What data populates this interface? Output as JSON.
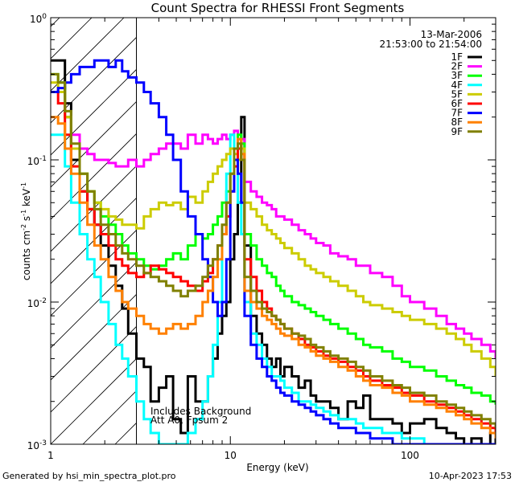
{
  "chart_data": {
    "type": "line",
    "title": "Count Spectra for RHESSI Front Segments",
    "xlabel": "Energy (keV)",
    "ylabel_parts": {
      "a": "counts cm",
      "a_sup": "-2",
      "b": " s",
      "b_sup": "-1",
      "c": " keV",
      "c_sup": "-1"
    },
    "x_scale": "log",
    "y_scale": "log",
    "xlim": [
      1,
      300
    ],
    "ylim": [
      0.001,
      1
    ],
    "x_ticks": [
      {
        "value": 1,
        "label": "1"
      },
      {
        "value": 10,
        "label": "10"
      },
      {
        "value": 100,
        "label": "100"
      }
    ],
    "y_ticks": [
      {
        "value": 1,
        "base": "10",
        "exp": "0"
      },
      {
        "value": 0.1,
        "base": "10",
        "exp": "-1"
      },
      {
        "value": 0.01,
        "base": "10",
        "exp": "-2"
      },
      {
        "value": 0.001,
        "base": "10",
        "exp": "-3"
      }
    ],
    "date": "13-Mar-2006",
    "time_range": "21:53:00 to 21:54:00",
    "annotations": [
      "Includes Background",
      "Att A0, Fpsum 2"
    ],
    "shaded_region_xmax": 3,
    "energy": [
      1.0,
      1.05,
      1.1,
      1.2,
      1.3,
      1.45,
      1.6,
      1.75,
      1.9,
      2.1,
      2.3,
      2.5,
      2.7,
      3.0,
      3.3,
      3.6,
      4.0,
      4.4,
      4.8,
      5.3,
      5.8,
      6.4,
      7.0,
      7.5,
      8.0,
      8.5,
      9.0,
      9.5,
      10.0,
      10.5,
      11.0,
      11.5,
      12.0,
      13,
      14,
      15,
      16,
      17,
      18,
      19,
      20,
      22,
      24,
      26,
      28,
      30,
      33,
      36,
      40,
      45,
      50,
      55,
      60,
      70,
      80,
      90,
      100,
      120,
      140,
      160,
      180,
      200,
      220,
      250,
      280,
      300
    ],
    "series": [
      {
        "name": "1F",
        "color": "#000000",
        "values": [
          0.5,
          0.5,
          0.5,
          0.25,
          0.1,
          0.06,
          0.045,
          0.035,
          0.025,
          0.018,
          0.013,
          0.009,
          0.006,
          0.004,
          0.0035,
          0.002,
          0.0025,
          0.003,
          0.0015,
          0.0012,
          0.003,
          0.002,
          0.002,
          0.003,
          0.004,
          0.006,
          0.008,
          0.01,
          0.02,
          0.03,
          0.05,
          0.2,
          0.025,
          0.008,
          0.006,
          0.005,
          0.004,
          0.0035,
          0.004,
          0.003,
          0.0035,
          0.003,
          0.0025,
          0.0028,
          0.0022,
          0.002,
          0.002,
          0.0018,
          0.0015,
          0.002,
          0.0018,
          0.0022,
          0.0015,
          0.0015,
          0.0014,
          0.0012,
          0.0014,
          0.0015,
          0.0013,
          0.0012,
          0.0011,
          0.001,
          0.0011,
          0.001,
          0.0012,
          0.001
        ]
      },
      {
        "name": "2F",
        "color": "#ff00ff",
        "values": [
          0.3,
          0.3,
          0.3,
          0.2,
          0.15,
          0.12,
          0.11,
          0.1,
          0.1,
          0.095,
          0.09,
          0.09,
          0.1,
          0.09,
          0.1,
          0.11,
          0.12,
          0.13,
          0.13,
          0.12,
          0.15,
          0.13,
          0.15,
          0.14,
          0.13,
          0.14,
          0.15,
          0.14,
          0.15,
          0.16,
          0.14,
          0.14,
          0.07,
          0.06,
          0.055,
          0.05,
          0.048,
          0.045,
          0.04,
          0.04,
          0.038,
          0.035,
          0.032,
          0.03,
          0.028,
          0.026,
          0.025,
          0.022,
          0.021,
          0.02,
          0.018,
          0.018,
          0.016,
          0.015,
          0.013,
          0.011,
          0.01,
          0.009,
          0.008,
          0.007,
          0.0065,
          0.006,
          0.0055,
          0.005,
          0.0045,
          0.004
        ]
      },
      {
        "name": "3F",
        "color": "#00ff00",
        "values": [
          0.4,
          0.4,
          0.35,
          0.2,
          0.12,
          0.08,
          0.06,
          0.05,
          0.04,
          0.035,
          0.03,
          0.025,
          0.022,
          0.02,
          0.018,
          0.017,
          0.018,
          0.02,
          0.022,
          0.02,
          0.025,
          0.03,
          0.028,
          0.03,
          0.035,
          0.04,
          0.05,
          0.06,
          0.08,
          0.12,
          0.15,
          0.13,
          0.03,
          0.025,
          0.02,
          0.018,
          0.016,
          0.015,
          0.013,
          0.012,
          0.011,
          0.01,
          0.0095,
          0.009,
          0.0085,
          0.008,
          0.0075,
          0.007,
          0.0065,
          0.006,
          0.0055,
          0.005,
          0.0048,
          0.0045,
          0.004,
          0.0038,
          0.0035,
          0.0033,
          0.003,
          0.0028,
          0.0026,
          0.0025,
          0.0023,
          0.0022,
          0.002,
          0.0019
        ]
      },
      {
        "name": "4F",
        "color": "#00ffff",
        "values": [
          0.15,
          0.15,
          0.15,
          0.09,
          0.05,
          0.03,
          0.02,
          0.015,
          0.01,
          0.007,
          0.005,
          0.004,
          0.003,
          0.002,
          0.0015,
          0.0012,
          0.001,
          0.001,
          0.001,
          0.001,
          0.0012,
          0.0015,
          0.002,
          0.003,
          0.005,
          0.01,
          0.03,
          0.08,
          0.15,
          0.12,
          0.05,
          0.03,
          0.01,
          0.006,
          0.005,
          0.004,
          0.0035,
          0.003,
          0.003,
          0.0028,
          0.0025,
          0.0023,
          0.002,
          0.002,
          0.0019,
          0.0018,
          0.0017,
          0.0016,
          0.0015,
          0.0015,
          0.0014,
          0.0013,
          0.0013,
          0.0012,
          0.0012,
          0.0011,
          0.0011,
          0.001,
          0.001,
          0.001,
          0.001,
          0.001,
          0.001,
          0.001,
          0.001,
          0.001
        ]
      },
      {
        "name": "5F",
        "color": "#cccc00",
        "values": [
          0.35,
          0.35,
          0.3,
          0.2,
          0.12,
          0.08,
          0.06,
          0.05,
          0.045,
          0.04,
          0.038,
          0.035,
          0.035,
          0.033,
          0.04,
          0.045,
          0.05,
          0.048,
          0.05,
          0.045,
          0.055,
          0.05,
          0.06,
          0.07,
          0.08,
          0.09,
          0.1,
          0.11,
          0.12,
          0.11,
          0.1,
          0.12,
          0.05,
          0.045,
          0.04,
          0.035,
          0.032,
          0.03,
          0.028,
          0.026,
          0.024,
          0.022,
          0.02,
          0.018,
          0.017,
          0.016,
          0.015,
          0.014,
          0.013,
          0.012,
          0.011,
          0.01,
          0.0095,
          0.009,
          0.0085,
          0.008,
          0.0075,
          0.007,
          0.0065,
          0.006,
          0.0055,
          0.005,
          0.0045,
          0.004,
          0.0035,
          0.003
        ]
      },
      {
        "name": "6F",
        "color": "#ff0000",
        "values": [
          0.3,
          0.3,
          0.25,
          0.15,
          0.09,
          0.06,
          0.045,
          0.035,
          0.03,
          0.025,
          0.02,
          0.018,
          0.016,
          0.015,
          0.016,
          0.018,
          0.017,
          0.016,
          0.015,
          0.014,
          0.013,
          0.012,
          0.014,
          0.016,
          0.02,
          0.025,
          0.03,
          0.04,
          0.06,
          0.09,
          0.12,
          0.1,
          0.02,
          0.015,
          0.012,
          0.01,
          0.009,
          0.008,
          0.0075,
          0.007,
          0.0065,
          0.006,
          0.0055,
          0.005,
          0.0048,
          0.0045,
          0.0042,
          0.004,
          0.0038,
          0.0035,
          0.0033,
          0.003,
          0.0028,
          0.0026,
          0.0025,
          0.0023,
          0.0022,
          0.002,
          0.0019,
          0.0018,
          0.0017,
          0.0016,
          0.0015,
          0.0014,
          0.0013,
          0.0012
        ]
      },
      {
        "name": "7F",
        "color": "#0000ff",
        "values": [
          0.3,
          0.3,
          0.32,
          0.35,
          0.4,
          0.45,
          0.45,
          0.5,
          0.5,
          0.45,
          0.5,
          0.42,
          0.38,
          0.35,
          0.3,
          0.25,
          0.2,
          0.15,
          0.1,
          0.06,
          0.04,
          0.03,
          0.02,
          0.015,
          0.01,
          0.008,
          0.01,
          0.02,
          0.06,
          0.1,
          0.08,
          0.05,
          0.008,
          0.005,
          0.004,
          0.0035,
          0.003,
          0.0028,
          0.0025,
          0.0023,
          0.0022,
          0.002,
          0.0019,
          0.0018,
          0.0017,
          0.0016,
          0.0015,
          0.0014,
          0.0013,
          0.0013,
          0.0012,
          0.0012,
          0.0011,
          0.0011,
          0.001,
          0.001,
          0.001,
          0.001,
          0.001,
          0.001,
          0.001,
          0.001,
          0.001,
          0.001,
          0.001,
          0.001
        ]
      },
      {
        "name": "8F",
        "color": "#ff8000",
        "values": [
          0.2,
          0.2,
          0.18,
          0.12,
          0.08,
          0.05,
          0.035,
          0.025,
          0.02,
          0.015,
          0.012,
          0.01,
          0.009,
          0.008,
          0.007,
          0.0065,
          0.006,
          0.0065,
          0.007,
          0.0065,
          0.007,
          0.008,
          0.01,
          0.012,
          0.015,
          0.02,
          0.03,
          0.05,
          0.08,
          0.12,
          0.14,
          0.11,
          0.012,
          0.01,
          0.009,
          0.008,
          0.0075,
          0.007,
          0.0065,
          0.006,
          0.0058,
          0.0055,
          0.005,
          0.0048,
          0.0045,
          0.0042,
          0.004,
          0.0038,
          0.0035,
          0.0033,
          0.003,
          0.0028,
          0.0026,
          0.0025,
          0.0023,
          0.0022,
          0.002,
          0.0019,
          0.0018,
          0.0017,
          0.0016,
          0.0015,
          0.0014,
          0.0013,
          0.0012,
          0.0011
        ]
      },
      {
        "name": "9F",
        "color": "#808000",
        "values": [
          0.4,
          0.4,
          0.35,
          0.22,
          0.13,
          0.08,
          0.06,
          0.045,
          0.035,
          0.03,
          0.025,
          0.022,
          0.02,
          0.018,
          0.016,
          0.015,
          0.014,
          0.013,
          0.012,
          0.011,
          0.012,
          0.013,
          0.015,
          0.018,
          0.02,
          0.025,
          0.035,
          0.05,
          0.08,
          0.12,
          0.13,
          0.1,
          0.015,
          0.012,
          0.01,
          0.009,
          0.0085,
          0.008,
          0.0075,
          0.007,
          0.0065,
          0.006,
          0.0058,
          0.0055,
          0.005,
          0.0048,
          0.0045,
          0.0042,
          0.004,
          0.0038,
          0.0035,
          0.0033,
          0.003,
          0.0028,
          0.0026,
          0.0025,
          0.0023,
          0.0022,
          0.002,
          0.0019,
          0.0018,
          0.0017,
          0.0016,
          0.0015,
          0.0014,
          0.0013
        ]
      }
    ]
  },
  "footer": {
    "generated_by": "Generated by hsi_min_spectra_plot.pro",
    "timestamp": "10-Apr-2023 17:53"
  }
}
